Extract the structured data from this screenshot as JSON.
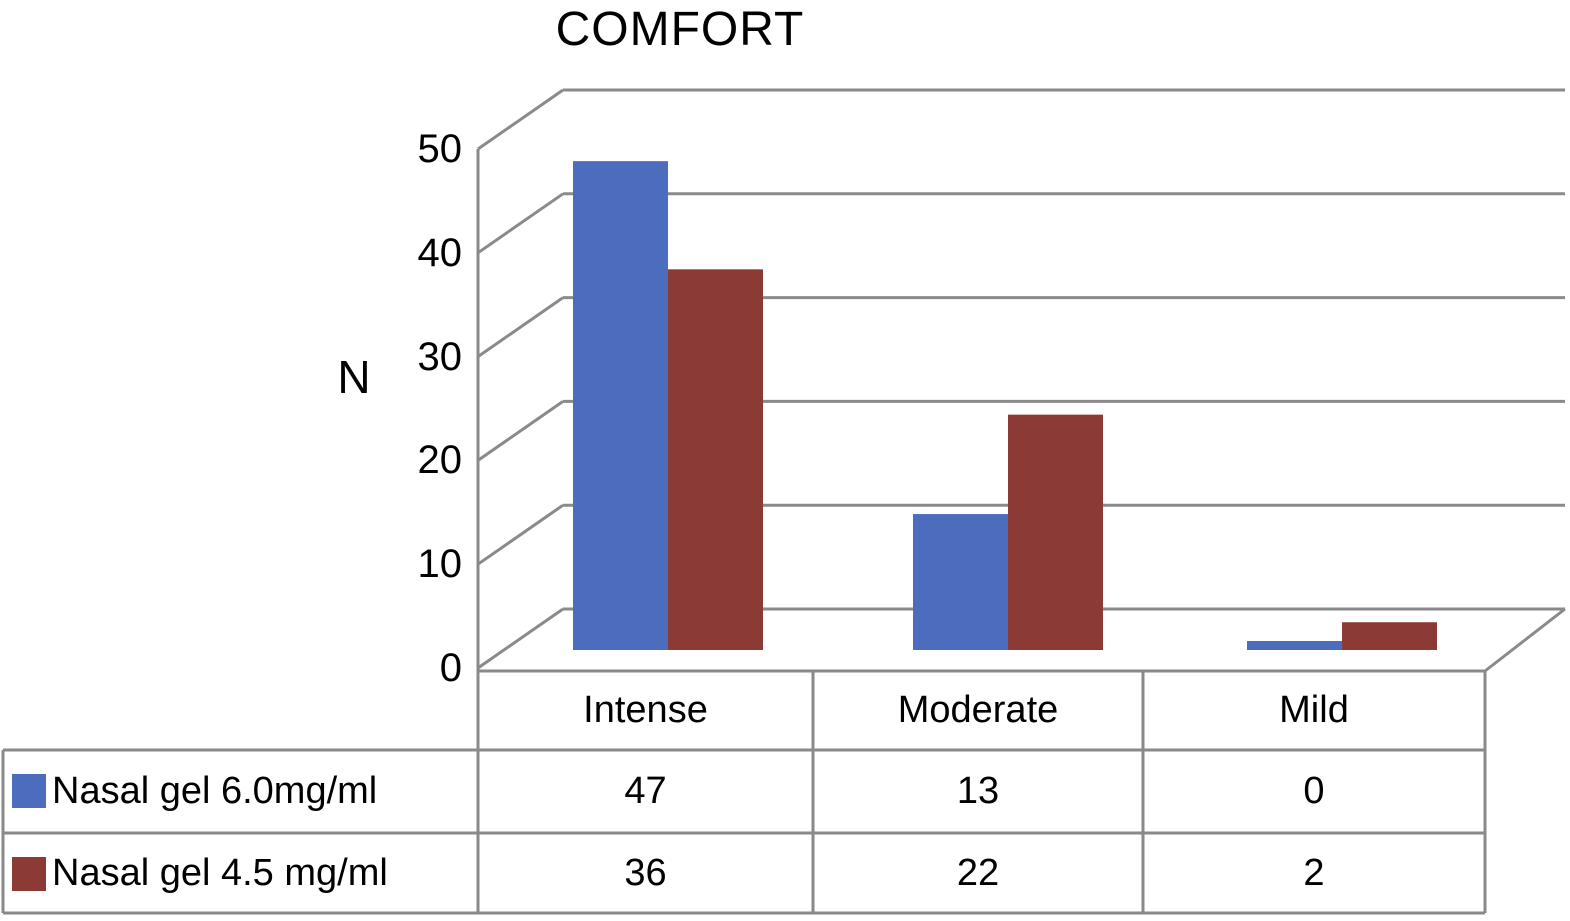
{
  "chart_data": {
    "type": "bar",
    "projection": "pseudo-3d",
    "title": "COMFORT",
    "ylabel": "N",
    "xlabel": "",
    "categories": [
      "Intense",
      "Moderate",
      "Mild"
    ],
    "series": [
      {
        "name": "Nasal gel 6.0mg/ml",
        "color": "#4C6DBE",
        "values": [
          47,
          13,
          0
        ]
      },
      {
        "name": "Nasal gel 4.5 mg/ml",
        "color": "#8C3A36",
        "values": [
          36,
          22,
          2
        ]
      }
    ],
    "yticks": [
      0,
      10,
      20,
      30,
      40,
      50
    ],
    "ylim": [
      0,
      50
    ],
    "grid": true,
    "grid_color": "#8a8a8a",
    "legend_position": "data-table-left",
    "data_table_shown": true
  }
}
